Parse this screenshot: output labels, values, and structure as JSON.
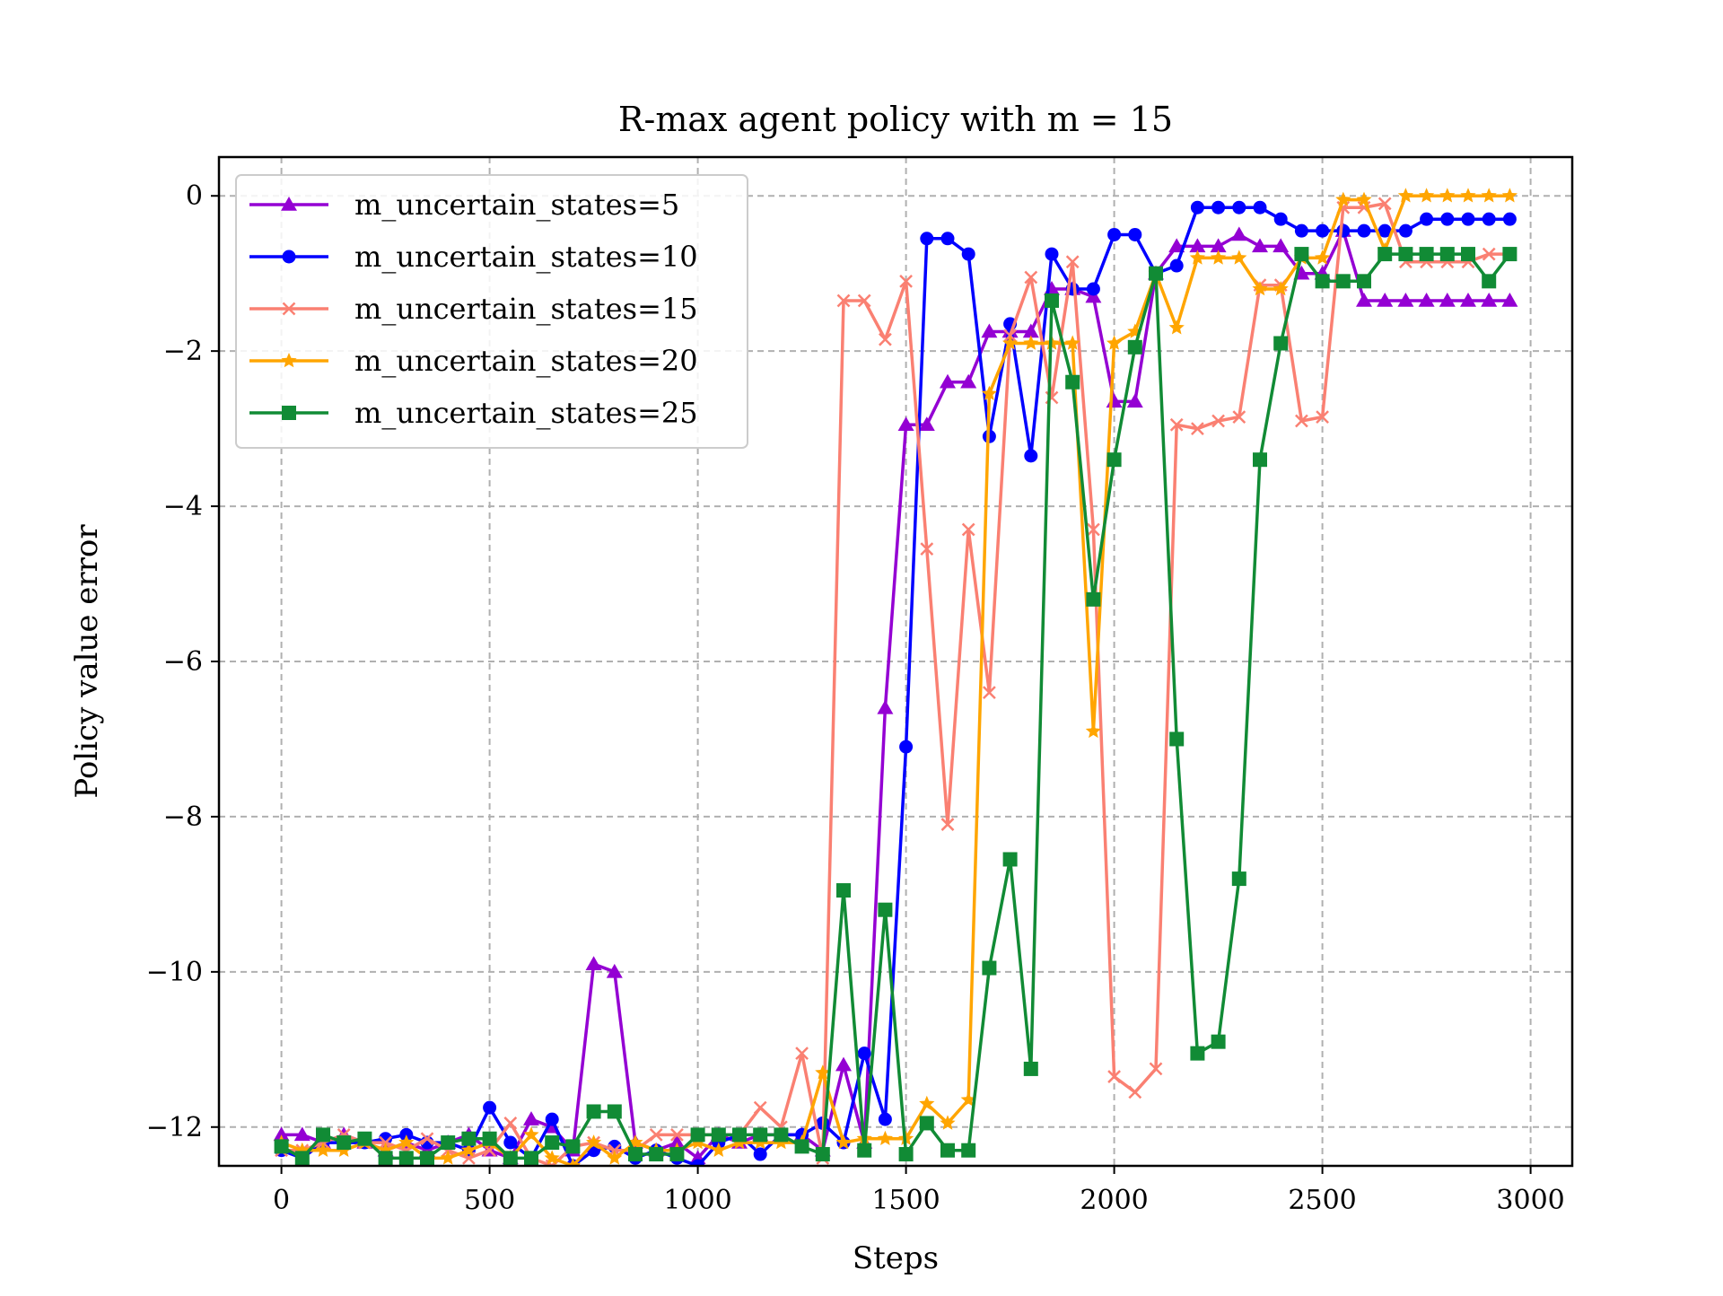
{
  "chart_data": {
    "type": "line",
    "title": "R-max agent policy with m = 15",
    "xlabel": "Steps",
    "ylabel": "Policy value error",
    "xlim": [
      -150,
      3100
    ],
    "ylim": [
      -12.5,
      0.5
    ],
    "xticks": [
      0,
      500,
      1000,
      1500,
      2000,
      2500,
      3000
    ],
    "yticks": [
      0,
      -2,
      -4,
      -6,
      -8,
      -10,
      -12
    ],
    "xtick_labels": [
      "0",
      "500",
      "1000",
      "1500",
      "2000",
      "2500",
      "3000"
    ],
    "ytick_labels": [
      "0",
      "−2",
      "−4",
      "−6",
      "−8",
      "−10",
      "−12"
    ],
    "grid": true,
    "legend_position": "upper-left",
    "x": [
      0,
      50,
      100,
      150,
      200,
      250,
      300,
      350,
      400,
      450,
      500,
      550,
      600,
      650,
      700,
      750,
      800,
      850,
      900,
      950,
      1000,
      1050,
      1100,
      1150,
      1200,
      1250,
      1300,
      1350,
      1400,
      1450,
      1500,
      1550,
      1600,
      1650,
      1700,
      1750,
      1800,
      1850,
      1900,
      1950,
      2000,
      2050,
      2100,
      2150,
      2200,
      2250,
      2300,
      2350,
      2400,
      2450,
      2500,
      2550,
      2600,
      2650,
      2700,
      2750,
      2800,
      2850,
      2900,
      2950
    ],
    "series": [
      {
        "name": "m_uncertain_states=5",
        "color": "#9400d3",
        "marker": "triangle",
        "values": [
          -12.1,
          -12.1,
          -12.2,
          -12.1,
          -12.2,
          -12.3,
          -12.2,
          -12.3,
          -12.2,
          -12.1,
          -12.3,
          -12.4,
          -11.9,
          -12.0,
          -12.3,
          -9.9,
          -10.0,
          -12.2,
          -12.3,
          -12.2,
          -12.4,
          -12.1,
          -12.2,
          -12.1,
          -12.1,
          -12.1,
          -12.3,
          -11.2,
          -12.2,
          -6.6,
          -2.95,
          -2.95,
          -2.4,
          -2.4,
          -1.75,
          -1.75,
          -1.75,
          -1.2,
          -1.2,
          -1.3,
          -2.65,
          -2.65,
          -1.0,
          -0.65,
          -0.65,
          -0.65,
          -0.5,
          -0.65,
          -0.65,
          -1.0,
          -1.0,
          -0.45,
          -1.35,
          -1.35,
          -1.35,
          -1.35,
          -1.35,
          -1.35,
          -1.35,
          -1.35
        ]
      },
      {
        "name": "m_uncertain_states=10",
        "color": "#0000ff",
        "marker": "circle",
        "values": [
          -12.3,
          -12.4,
          -12.2,
          -12.2,
          -12.2,
          -12.15,
          -12.1,
          -12.2,
          -12.2,
          -12.3,
          -11.75,
          -12.2,
          -12.4,
          -11.9,
          -12.5,
          -12.3,
          -12.25,
          -12.4,
          -12.3,
          -12.4,
          -12.5,
          -12.2,
          -12.1,
          -12.35,
          -12.1,
          -12.1,
          -11.95,
          -12.2,
          -11.05,
          -11.9,
          -7.1,
          -0.55,
          -0.55,
          -0.75,
          -3.1,
          -1.65,
          -3.35,
          -0.75,
          -1.2,
          -1.2,
          -0.5,
          -0.5,
          -1.0,
          -0.9,
          -0.15,
          -0.15,
          -0.15,
          -0.15,
          -0.3,
          -0.45,
          -0.45,
          -0.45,
          -0.45,
          -0.45,
          -0.45,
          -0.3,
          -0.3,
          -0.3,
          -0.3,
          -0.3
        ]
      },
      {
        "name": "m_uncertain_states=15",
        "color": "#fa8072",
        "marker": "x",
        "values": [
          -12.3,
          -12.3,
          -12.2,
          -12.1,
          -12.2,
          -12.2,
          -12.3,
          -12.15,
          -12.3,
          -12.4,
          -12.3,
          -11.95,
          -12.4,
          -12.5,
          -12.25,
          -12.2,
          -12.3,
          -12.3,
          -12.1,
          -12.1,
          -12.1,
          -12.1,
          -12.1,
          -11.75,
          -12.0,
          -11.05,
          -12.4,
          -1.35,
          -1.35,
          -1.85,
          -1.1,
          -4.55,
          -8.1,
          -4.3,
          -6.4,
          -1.8,
          -1.05,
          -2.6,
          -0.85,
          -4.3,
          -11.35,
          -11.55,
          -11.25,
          -2.95,
          -3.0,
          -2.9,
          -2.85,
          -1.15,
          -1.15,
          -2.9,
          -2.85,
          -0.15,
          -0.15,
          -0.1,
          -0.85,
          -0.85,
          -0.85,
          -0.85,
          -0.75,
          -0.75
        ]
      },
      {
        "name": "m_uncertain_states=20",
        "color": "#ffa500",
        "marker": "star",
        "values": [
          -12.2,
          -12.3,
          -12.3,
          -12.3,
          -12.2,
          -12.3,
          -12.2,
          -12.4,
          -12.4,
          -12.3,
          -12.2,
          -12.4,
          -12.1,
          -12.4,
          -12.5,
          -12.2,
          -12.4,
          -12.2,
          -12.3,
          -12.3,
          -12.2,
          -12.3,
          -12.2,
          -12.2,
          -12.2,
          -12.2,
          -11.3,
          -12.2,
          -12.15,
          -12.15,
          -12.15,
          -11.7,
          -11.95,
          -11.65,
          -2.55,
          -1.9,
          -1.9,
          -1.9,
          -1.9,
          -6.9,
          -1.9,
          -1.75,
          -1.0,
          -1.7,
          -0.8,
          -0.8,
          -0.8,
          -1.2,
          -1.2,
          -0.8,
          -0.8,
          -0.05,
          -0.05,
          -0.7,
          -0.0,
          -0.0,
          -0.0,
          -0.0,
          -0.0,
          -0.0
        ]
      },
      {
        "name": "m_uncertain_states=25",
        "color": "#118b35",
        "marker": "square",
        "values": [
          -12.25,
          -12.4,
          -12.1,
          -12.2,
          -12.15,
          -12.4,
          -12.4,
          -12.4,
          -12.2,
          -12.15,
          -12.15,
          -12.4,
          -12.4,
          -12.2,
          -12.25,
          -11.8,
          -11.8,
          -12.35,
          -12.35,
          -12.35,
          -12.1,
          -12.1,
          -12.1,
          -12.1,
          -12.1,
          -12.25,
          -12.35,
          -8.95,
          -12.3,
          -9.2,
          -12.35,
          -11.95,
          -12.3,
          -12.3,
          -9.95,
          -8.55,
          -11.25,
          -1.35,
          -2.4,
          -5.2,
          -3.4,
          -1.95,
          -1.0,
          -7.0,
          -11.05,
          -10.9,
          -8.8,
          -3.4,
          -1.9,
          -0.75,
          -1.1,
          -1.1,
          -1.1,
          -0.75,
          -0.75,
          -0.75,
          -0.75,
          -0.75,
          -1.1,
          -0.75
        ]
      }
    ]
  }
}
